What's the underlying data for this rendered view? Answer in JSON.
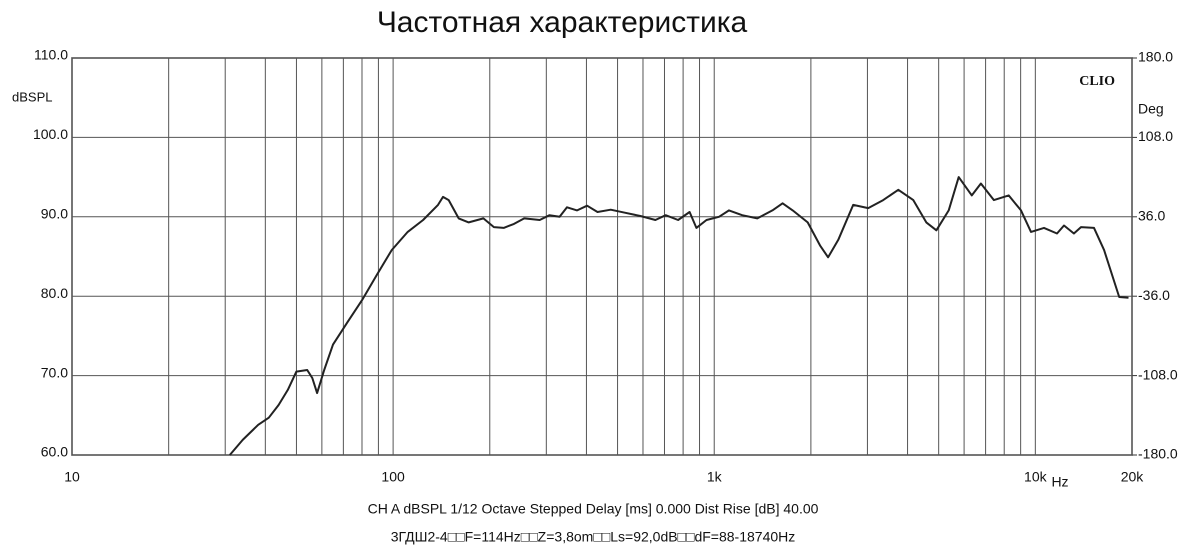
{
  "chart_data": {
    "type": "line",
    "title": "Частотная характеристика",
    "ylabel": "dBSPL",
    "y2label": "Deg",
    "xunit": "Hz",
    "watermark": "CLIO",
    "footer": [
      "CH A   dBSPL   1/12 Octave   Stepped   Delay [ms] 0.000   Dist Rise [dB] 40.00",
      "3ГДШ2-4□□F=114Hz□□Z=3,8om□□Ls=92,0dB□□dF=88-18740Hz"
    ],
    "xscale": "log",
    "xlim": [
      10,
      20000
    ],
    "xticks": [
      10,
      100,
      {
        "value": 1000,
        "label": "1k"
      },
      {
        "value": 10000,
        "label": "10k"
      },
      {
        "value": 20000,
        "label": "20k"
      }
    ],
    "xgrid": [
      20,
      30,
      40,
      50,
      60,
      70,
      80,
      90,
      200,
      300,
      400,
      500,
      600,
      700,
      800,
      900,
      2000,
      3000,
      4000,
      5000,
      6000,
      7000,
      8000,
      9000
    ],
    "ylim": [
      60,
      110
    ],
    "yticks": [
      {
        "value": 60,
        "label": "60.0"
      },
      {
        "value": 70,
        "label": "70.0"
      },
      {
        "value": 80,
        "label": "80.0"
      },
      {
        "value": 90,
        "label": "90.0"
      },
      {
        "value": 100,
        "label": "100.0"
      },
      {
        "value": 110,
        "label": "110.0"
      }
    ],
    "y2lim": [
      -180,
      180
    ],
    "y2ticks": [
      {
        "value": -180,
        "label": "-180.0"
      },
      {
        "value": -108,
        "label": "-108.0"
      },
      {
        "value": -36,
        "label": "-36.0"
      },
      {
        "value": 36,
        "label": "36.0"
      },
      {
        "value": 108,
        "label": "108.0"
      },
      {
        "value": 180,
        "label": "180.0"
      }
    ],
    "grid": true,
    "series": [
      {
        "color": "#222222",
        "x": [
          31,
          34,
          38,
          41,
          44,
          47,
          50,
          54,
          56,
          58,
          61,
          65,
          72,
          80,
          89,
          99,
          111,
          124,
          138,
          143,
          149,
          160,
          172,
          191,
          206,
          221,
          238,
          256,
          286,
          307,
          330,
          348,
          374,
          402,
          433,
          476,
          529,
          589,
          656,
          706,
          772,
          838,
          880,
          946,
          1035,
          1112,
          1222,
          1362,
          1518,
          1633,
          1756,
          1955,
          2135,
          2263,
          2434,
          2708,
          3016,
          3360,
          3742,
          4168,
          4574,
          4920,
          5372,
          5773,
          6339,
          6767,
          7427,
          8262,
          9022,
          9693,
          10640,
          11680,
          12280,
          13190,
          13870,
          15230,
          16370,
          18250,
          19500
        ],
        "values": [
          60,
          61.9,
          63.8,
          64.7,
          66.3,
          68.2,
          70.5,
          70.7,
          69.7,
          67.8,
          70.7,
          73.9,
          76.7,
          79.5,
          82.7,
          85.8,
          88.1,
          89.6,
          91.5,
          92.5,
          92.1,
          89.8,
          89.3,
          89.8,
          88.7,
          88.6,
          89.1,
          89.8,
          89.6,
          90.2,
          90.0,
          91.2,
          90.8,
          91.4,
          90.6,
          90.9,
          90.5,
          90.1,
          89.6,
          90.2,
          89.6,
          90.6,
          88.6,
          89.6,
          90.0,
          90.8,
          90.2,
          89.8,
          90.8,
          91.7,
          90.8,
          89.3,
          86.4,
          84.9,
          87.1,
          91.5,
          91.1,
          92.1,
          93.4,
          92.1,
          89.3,
          88.3,
          90.8,
          95.0,
          92.7,
          94.2,
          92.1,
          92.7,
          90.8,
          88.1,
          88.6,
          87.9,
          88.9,
          87.9,
          88.7,
          88.6,
          85.8,
          79.9,
          79.8
        ]
      }
    ]
  }
}
